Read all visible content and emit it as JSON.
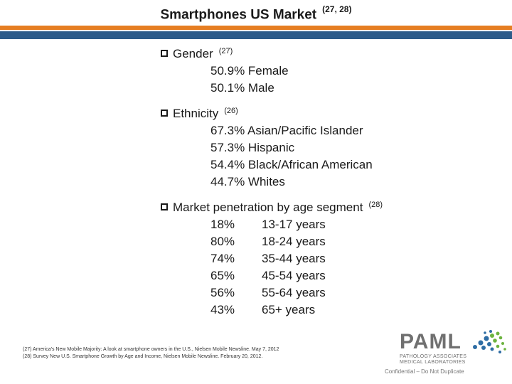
{
  "slide": {
    "title": "Smartphones US Market",
    "title_ref": "(27, 28)"
  },
  "sections": {
    "gender": {
      "heading": "Gender",
      "ref": "(27)",
      "items": [
        "50.9% Female",
        "50.1% Male"
      ]
    },
    "ethnicity": {
      "heading": "Ethnicity",
      "ref": "(26)",
      "items": [
        "67.3% Asian/Pacific Islander",
        "57.3% Hispanic",
        "54.4% Black/African American",
        "44.7% Whites"
      ]
    },
    "penetration": {
      "heading": "Market penetration by age segment",
      "ref": "(28)",
      "rows": [
        {
          "pct": "18%",
          "age": "13-17 years"
        },
        {
          "pct": "80%",
          "age": "18-24 years"
        },
        {
          "pct": "74%",
          "age": "35-44 years"
        },
        {
          "pct": "65%",
          "age": "45-54 years"
        },
        {
          "pct": "56%",
          "age": "55-64 years"
        },
        {
          "pct": "43%",
          "age": "65+ years"
        }
      ]
    }
  },
  "footer": {
    "ref1": "(27)  America's New Mobile Majority: A look at smartphone owners in the U.S., Nielsen Mobile Newsline.  May 7, 2012",
    "ref2": "(28)  Survey New U.S. Smartphone Growth by Age and Income, Nielsen Mobile Newsline.  February 20, 2012.",
    "logo_text": "PAML",
    "logo_sub1": "PATHOLOGY ASSOCIATES",
    "logo_sub2": "MEDICAL LABORATORIES",
    "confidential": "Confidential – Do Not Duplicate"
  },
  "colors": {
    "orange_bar": "#e67e22",
    "blue_bar": "#2e5c8a",
    "logo_blue": "#2e6da4",
    "logo_green": "#6cb33f"
  }
}
